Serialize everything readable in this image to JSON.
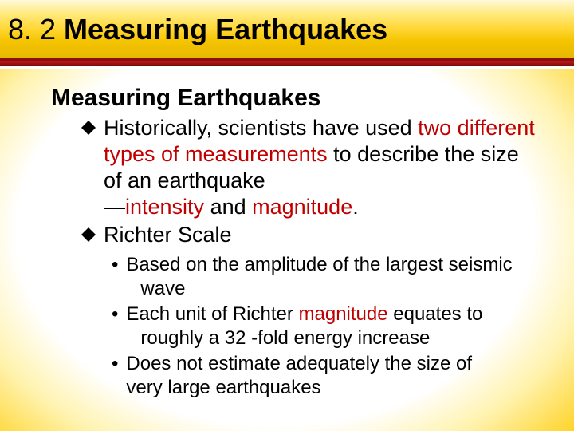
{
  "colors": {
    "title_gradient_top": "#fff8d8",
    "title_gradient_bottom": "#e6b800",
    "red_bar_top": "#c91818",
    "red_bar_bottom": "#7a0a0a",
    "highlight": "#c00000",
    "text": "#000000",
    "glow_inner": "#ffffff",
    "glow_outer": "#f5b800"
  },
  "typography": {
    "title_fontsize": 36,
    "subheading_fontsize": 30,
    "body_fontsize": 27,
    "sub_fontsize": 24,
    "font_family": "Arial"
  },
  "header": {
    "section_number": "8. 2",
    "title": "Measuring Earthquakes"
  },
  "content": {
    "subheading": "Measuring Earthquakes",
    "bullets": [
      {
        "segments": [
          {
            "t": "Historically, scientists have used ",
            "hl": false
          },
          {
            "t": "two different types of measurements",
            "hl": true
          },
          {
            "t": " to describe the size of an earthquake",
            "hl": false
          }
        ],
        "line2_segments": [
          {
            "t": "—",
            "hl": false
          },
          {
            "t": "intensity ",
            "hl": true
          },
          {
            "t": "and ",
            "hl": false
          },
          {
            "t": "magnitude",
            "hl": true
          },
          {
            "t": ".",
            "hl": false
          }
        ]
      },
      {
        "segments": [
          {
            "t": "Richter Scale",
            "hl": false
          }
        ]
      }
    ],
    "sub_bullets": [
      {
        "line1": "Based on the amplitude of the largest seismic",
        "line2": "wave"
      },
      {
        "line1_segments": [
          {
            "t": "Each unit of Richter ",
            "hl": false
          },
          {
            "t": "magnitude",
            "hl": true
          },
          {
            "t": " equates to",
            "hl": false
          }
        ],
        "line2": " roughly a 32 -fold energy increase"
      },
      {
        "line1": " Does not estimate adequately the size of",
        "line2_noindent": "very large earthquakes"
      }
    ]
  }
}
